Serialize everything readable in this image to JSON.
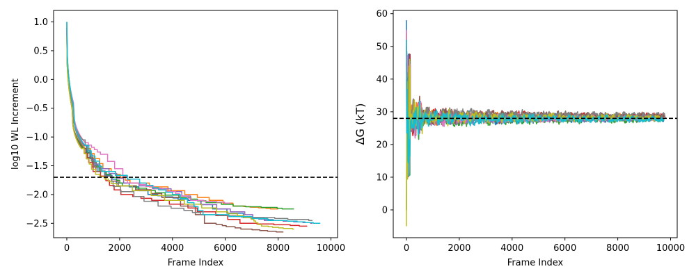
{
  "chart_data": [
    {
      "type": "line",
      "xlabel": "Frame Index",
      "ylabel": "log10 WL Increment",
      "xlim": [
        -500,
        10250
      ],
      "ylim": [
        -2.75,
        1.2
      ],
      "xticks": [
        0,
        2000,
        4000,
        6000,
        8000,
        10000
      ],
      "yticks": [
        1.0,
        0.5,
        0.0,
        -0.5,
        -1.0,
        -1.5,
        -2.0,
        -2.5
      ],
      "grid": false,
      "reference_line": {
        "y": -1.7,
        "style": "dashed",
        "color": "#000000"
      },
      "style": "step-decay",
      "series": [
        {
          "color": "#1f77b4",
          "values": [
            [
              0,
              1.0
            ],
            [
              250,
              -0.45
            ],
            [
              600,
              -1.15
            ],
            [
              1200,
              -1.6
            ],
            [
              2000,
              -1.8
            ],
            [
              3200,
              -2.0
            ],
            [
              4600,
              -2.1
            ],
            [
              6700,
              -2.4
            ],
            [
              8000,
              -2.45
            ]
          ]
        },
        {
          "color": "#ff7f0e",
          "values": [
            [
              0,
              0.95
            ],
            [
              250,
              -0.45
            ],
            [
              700,
              -1.2
            ],
            [
              1500,
              -1.55
            ],
            [
              2500,
              -1.8
            ],
            [
              4500,
              -2.0
            ],
            [
              6400,
              -2.2
            ],
            [
              8000,
              -2.25
            ]
          ]
        },
        {
          "color": "#2ca02c",
          "values": [
            [
              0,
              0.9
            ],
            [
              200,
              -0.5
            ],
            [
              650,
              -1.2
            ],
            [
              1300,
              -1.6
            ],
            [
              2300,
              -1.85
            ],
            [
              4300,
              -2.05
            ],
            [
              6300,
              -2.2
            ],
            [
              8600,
              -2.25
            ]
          ]
        },
        {
          "color": "#d62728",
          "values": [
            [
              0,
              0.85
            ],
            [
              200,
              -0.5
            ],
            [
              550,
              -1.2
            ],
            [
              1100,
              -1.6
            ],
            [
              2100,
              -2.0
            ],
            [
              3400,
              -2.1
            ],
            [
              5200,
              -2.3
            ],
            [
              6700,
              -2.5
            ],
            [
              9100,
              -2.55
            ]
          ]
        },
        {
          "color": "#9467bd",
          "values": [
            [
              0,
              0.9
            ],
            [
              250,
              -0.45
            ],
            [
              650,
              -1.15
            ],
            [
              1300,
              -1.55
            ],
            [
              2200,
              -1.8
            ],
            [
              4000,
              -1.95
            ],
            [
              5700,
              -2.25
            ],
            [
              7900,
              -2.45
            ],
            [
              9300,
              -2.5
            ]
          ]
        },
        {
          "color": "#8c564b",
          "values": [
            [
              0,
              0.8
            ],
            [
              200,
              -0.5
            ],
            [
              600,
              -1.2
            ],
            [
              1200,
              -1.6
            ],
            [
              2100,
              -1.85
            ],
            [
              3900,
              -2.05
            ],
            [
              5400,
              -2.5
            ],
            [
              6700,
              -2.6
            ],
            [
              8200,
              -2.65
            ]
          ]
        },
        {
          "color": "#e377c2",
          "values": [
            [
              0,
              0.85
            ],
            [
              250,
              -0.4
            ],
            [
              700,
              -1.1
            ],
            [
              1300,
              -1.3
            ],
            [
              2500,
              -1.8
            ],
            [
              3900,
              -1.95
            ],
            [
              4800,
              -2.1
            ],
            [
              6200,
              -2.15
            ]
          ]
        },
        {
          "color": "#7f7f7f",
          "values": [
            [
              0,
              0.7
            ],
            [
              200,
              -0.4
            ],
            [
              600,
              -1.05
            ],
            [
              1100,
              -1.5
            ],
            [
              2100,
              -1.95
            ],
            [
              3500,
              -2.2
            ],
            [
              5400,
              -2.35
            ],
            [
              7200,
              -2.4
            ],
            [
              9300,
              -2.45
            ]
          ]
        },
        {
          "color": "#bcbd22",
          "values": [
            [
              0,
              0.75
            ],
            [
              200,
              -0.5
            ],
            [
              550,
              -1.2
            ],
            [
              1100,
              -1.65
            ],
            [
              2000,
              -1.85
            ],
            [
              3800,
              -2.1
            ],
            [
              5800,
              -2.3
            ],
            [
              6900,
              -2.4
            ],
            [
              7400,
              -2.55
            ],
            [
              8600,
              -2.6
            ]
          ]
        },
        {
          "color": "#17becf",
          "values": [
            [
              0,
              1.0
            ],
            [
              250,
              -0.45
            ],
            [
              700,
              -1.15
            ],
            [
              1400,
              -1.6
            ],
            [
              2800,
              -1.8
            ],
            [
              4100,
              -2.0
            ],
            [
              5300,
              -2.35
            ],
            [
              8000,
              -2.45
            ],
            [
              9600,
              -2.5
            ]
          ]
        }
      ]
    },
    {
      "type": "line",
      "xlabel": "Frame Index",
      "ylabel": "ΔG (kT)",
      "xlim": [
        -500,
        10250
      ],
      "ylim": [
        -8.5,
        61
      ],
      "xticks": [
        0,
        2000,
        4000,
        6000,
        8000,
        10000
      ],
      "yticks": [
        0,
        10,
        20,
        30,
        40,
        50,
        60
      ],
      "grid": false,
      "reference_line": {
        "y": 28,
        "style": "dashed",
        "color": "#000000"
      },
      "style": "converging-noise",
      "series": [
        {
          "color": "#1f77b4",
          "target": 28.0,
          "start": 58,
          "end_x": 9750
        },
        {
          "color": "#ff7f0e",
          "target": 28.3,
          "start": 54,
          "end_x": 9600
        },
        {
          "color": "#2ca02c",
          "target": 27.6,
          "start": 0,
          "end_x": 9700
        },
        {
          "color": "#d62728",
          "target": 28.6,
          "start": 50,
          "end_x": 9800
        },
        {
          "color": "#9467bd",
          "target": 27.9,
          "start": 40,
          "end_x": 9650
        },
        {
          "color": "#8c564b",
          "target": 28.8,
          "start": 48,
          "end_x": 9750
        },
        {
          "color": "#e377c2",
          "target": 28.1,
          "start": 55,
          "end_x": 9500
        },
        {
          "color": "#7f7f7f",
          "target": 29.0,
          "start": 45,
          "end_x": 9800
        },
        {
          "color": "#bcbd22",
          "target": 28.2,
          "start": -5,
          "end_x": 9600
        },
        {
          "color": "#17becf",
          "target": 27.8,
          "start": 52,
          "end_x": 9750
        }
      ]
    }
  ]
}
